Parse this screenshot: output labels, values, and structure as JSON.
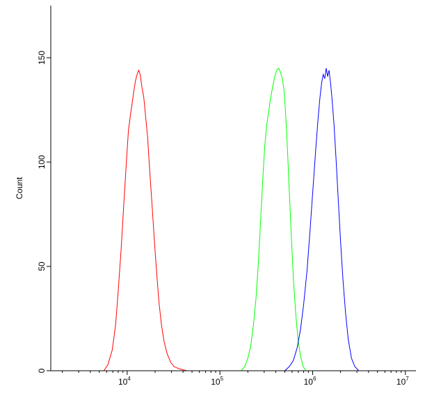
{
  "chart_data": {
    "type": "line",
    "title": "",
    "xlabel": "",
    "ylabel": "Count",
    "x_scale": "log",
    "xlim": [
      1500,
      13000000
    ],
    "ylim": [
      0,
      175
    ],
    "y_ticks": [
      0,
      50,
      100,
      150
    ],
    "x_ticks": [
      {
        "value": 10000,
        "base": "10",
        "exp": "4"
      },
      {
        "value": 100000,
        "base": "10",
        "exp": "5"
      },
      {
        "value": 1000000,
        "base": "10",
        "exp": "6"
      },
      {
        "value": 10000000,
        "base": "10",
        "exp": "7"
      }
    ],
    "grid": false,
    "legend": "none",
    "series": [
      {
        "color": "#ff0000",
        "points": [
          [
            5600,
            0
          ],
          [
            6200,
            3
          ],
          [
            6900,
            10
          ],
          [
            7500,
            22
          ],
          [
            8000,
            38
          ],
          [
            8600,
            58
          ],
          [
            9200,
            80
          ],
          [
            9800,
            100
          ],
          [
            10300,
            115
          ],
          [
            10800,
            122
          ],
          [
            11300,
            128
          ],
          [
            11800,
            134
          ],
          [
            12300,
            139
          ],
          [
            12800,
            142
          ],
          [
            13300,
            144
          ],
          [
            13800,
            142
          ],
          [
            14400,
            136
          ],
          [
            15100,
            131
          ],
          [
            15800,
            122
          ],
          [
            16600,
            112
          ],
          [
            17500,
            96
          ],
          [
            18500,
            80
          ],
          [
            19600,
            63
          ],
          [
            20800,
            47
          ],
          [
            22000,
            33
          ],
          [
            23400,
            22
          ],
          [
            25000,
            14
          ],
          [
            27000,
            8
          ],
          [
            29500,
            4
          ],
          [
            32000,
            2
          ],
          [
            36000,
            1
          ],
          [
            44000,
            0
          ],
          [
            55000,
            0
          ]
        ]
      },
      {
        "color": "#00ff00",
        "points": [
          [
            170000,
            0
          ],
          [
            185000,
            2
          ],
          [
            200000,
            6
          ],
          [
            215000,
            12
          ],
          [
            230000,
            22
          ],
          [
            245000,
            35
          ],
          [
            260000,
            52
          ],
          [
            275000,
            72
          ],
          [
            290000,
            92
          ],
          [
            305000,
            108
          ],
          [
            320000,
            118
          ],
          [
            335000,
            124
          ],
          [
            350000,
            130
          ],
          [
            370000,
            136
          ],
          [
            390000,
            141
          ],
          [
            410000,
            144
          ],
          [
            430000,
            145
          ],
          [
            450000,
            143
          ],
          [
            470000,
            140
          ],
          [
            490000,
            135
          ],
          [
            510000,
            124
          ],
          [
            535000,
            106
          ],
          [
            560000,
            86
          ],
          [
            590000,
            64
          ],
          [
            620000,
            44
          ],
          [
            655000,
            28
          ],
          [
            695000,
            15
          ],
          [
            740000,
            7
          ],
          [
            790000,
            2
          ],
          [
            850000,
            0
          ]
        ]
      },
      {
        "color": "#0000ff",
        "points": [
          [
            500000,
            0
          ],
          [
            560000,
            2
          ],
          [
            620000,
            5
          ],
          [
            680000,
            11
          ],
          [
            740000,
            20
          ],
          [
            800000,
            32
          ],
          [
            870000,
            48
          ],
          [
            940000,
            68
          ],
          [
            1010000,
            88
          ],
          [
            1080000,
            106
          ],
          [
            1140000,
            120
          ],
          [
            1200000,
            131
          ],
          [
            1250000,
            138
          ],
          [
            1300000,
            142
          ],
          [
            1350000,
            140
          ],
          [
            1400000,
            145
          ],
          [
            1450000,
            141
          ],
          [
            1500000,
            144
          ],
          [
            1560000,
            138
          ],
          [
            1620000,
            130
          ],
          [
            1700000,
            118
          ],
          [
            1790000,
            101
          ],
          [
            1890000,
            82
          ],
          [
            2000000,
            62
          ],
          [
            2120000,
            44
          ],
          [
            2260000,
            28
          ],
          [
            2420000,
            15
          ],
          [
            2620000,
            6
          ],
          [
            2850000,
            2
          ],
          [
            3150000,
            0
          ]
        ]
      }
    ]
  }
}
